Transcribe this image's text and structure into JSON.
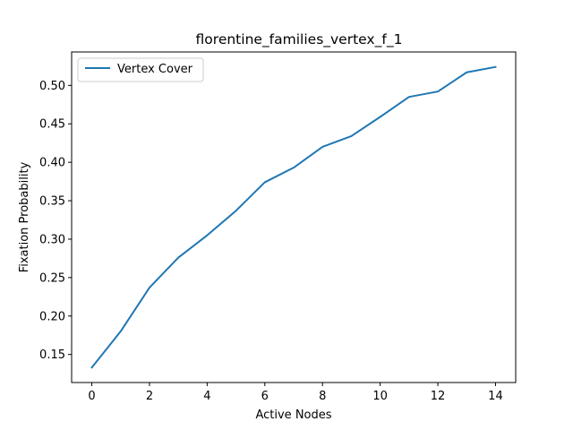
{
  "chart_data": {
    "type": "line",
    "title": "florentine_families_vertex_f_1",
    "xlabel": "Active Nodes",
    "ylabel": "Fixation Probability",
    "xlim": [
      -0.7,
      14.7
    ],
    "ylim": [
      0.1135,
      0.5435
    ],
    "xticks": [
      0,
      2,
      4,
      6,
      8,
      10,
      12,
      14
    ],
    "xtick_labels": [
      "0",
      "2",
      "4",
      "6",
      "8",
      "10",
      "12",
      "14"
    ],
    "yticks": [
      0.15,
      0.2,
      0.25,
      0.3,
      0.35,
      0.4,
      0.45,
      0.5
    ],
    "ytick_labels": [
      "0.15",
      "0.20",
      "0.25",
      "0.30",
      "0.35",
      "0.40",
      "0.45",
      "0.50"
    ],
    "grid": false,
    "legend_position": "upper-left",
    "series": [
      {
        "name": "Vertex Cover",
        "color": "#1f77b4",
        "x": [
          0,
          1,
          2,
          3,
          4,
          5,
          6,
          7,
          8,
          9,
          10,
          11,
          12,
          13,
          14
        ],
        "y": [
          0.133,
          0.18,
          0.237,
          0.276,
          0.305,
          0.337,
          0.374,
          0.393,
          0.42,
          0.434,
          0.459,
          0.485,
          0.492,
          0.517,
          0.524
        ]
      }
    ]
  }
}
